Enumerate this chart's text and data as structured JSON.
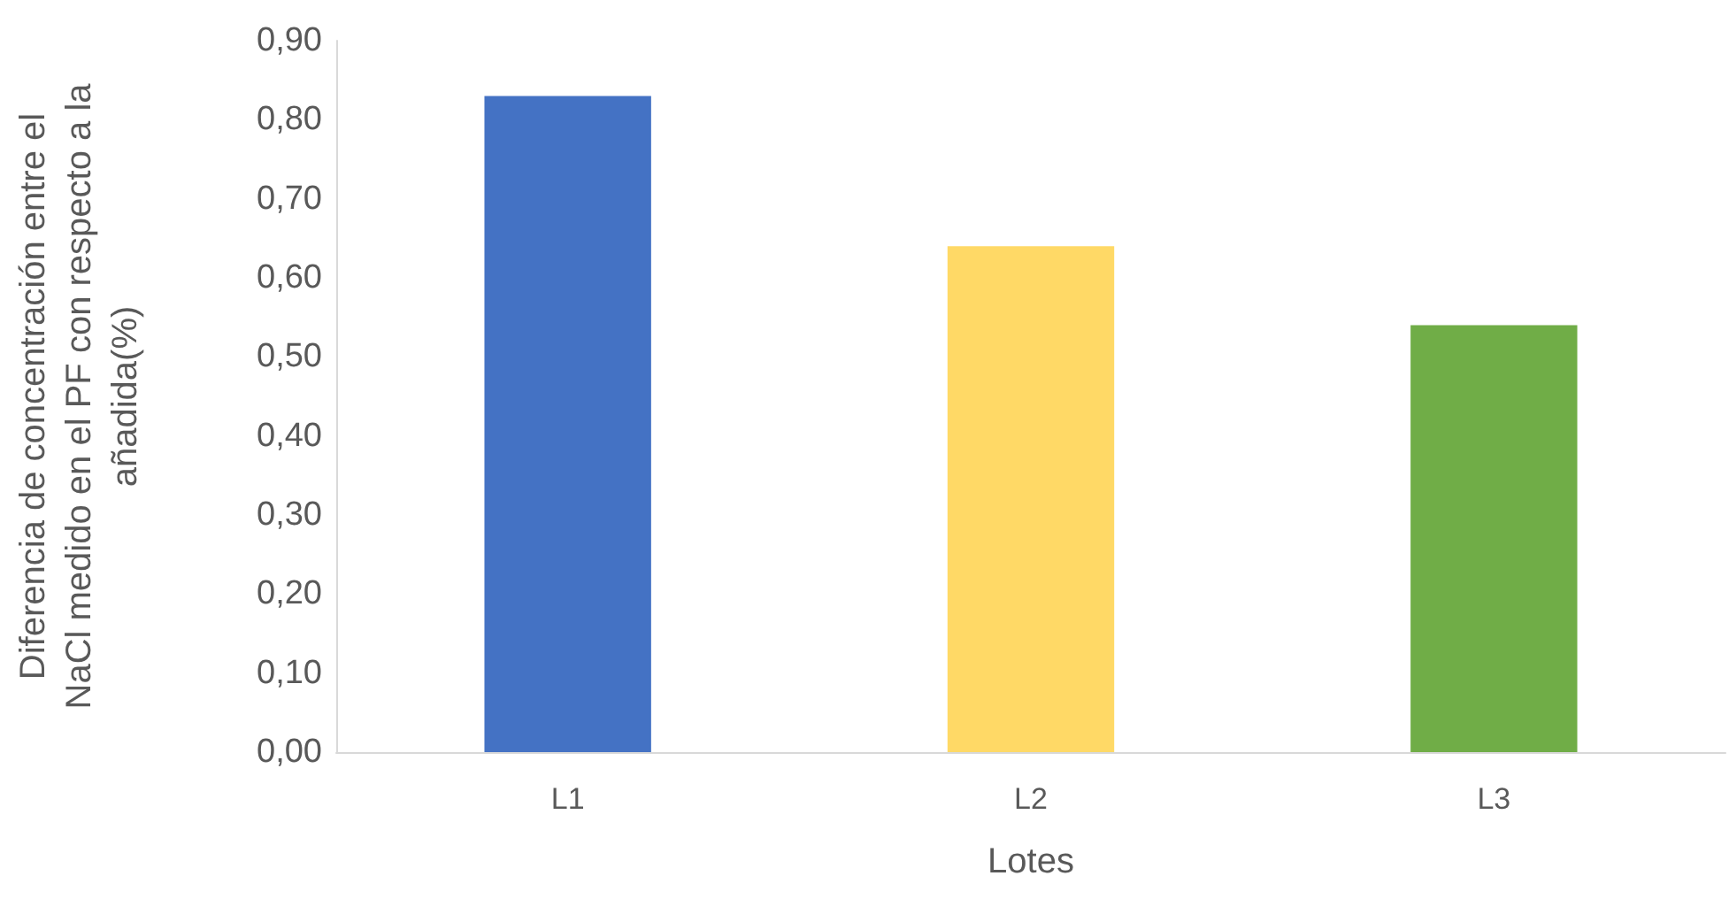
{
  "chart_data": {
    "type": "bar",
    "xlabel": "Lotes",
    "ylabel": "Diferencia de concentración entre el NaCl medido en el PF con respecto a la añadida(%)",
    "categories": [
      "L1",
      "L2",
      "L3"
    ],
    "values": [
      0.83,
      0.64,
      0.54
    ],
    "colors": [
      "#4472c4",
      "#ffd966",
      "#70ad47"
    ],
    "ylim": [
      0,
      0.9
    ],
    "yticks": [
      {
        "value": 0,
        "label": "0,00"
      },
      {
        "value": 0.1,
        "label": "0,10"
      },
      {
        "value": 0.2,
        "label": "0,20"
      },
      {
        "value": 0.3,
        "label": "0,30"
      },
      {
        "value": 0.4,
        "label": "0,40"
      },
      {
        "value": 0.5,
        "label": "0,50"
      },
      {
        "value": 0.6,
        "label": "0,60"
      },
      {
        "value": 0.7,
        "label": "0,70"
      },
      {
        "value": 0.8,
        "label": "0,80"
      },
      {
        "value": 0.9,
        "label": "0,90"
      }
    ],
    "grid": false
  }
}
